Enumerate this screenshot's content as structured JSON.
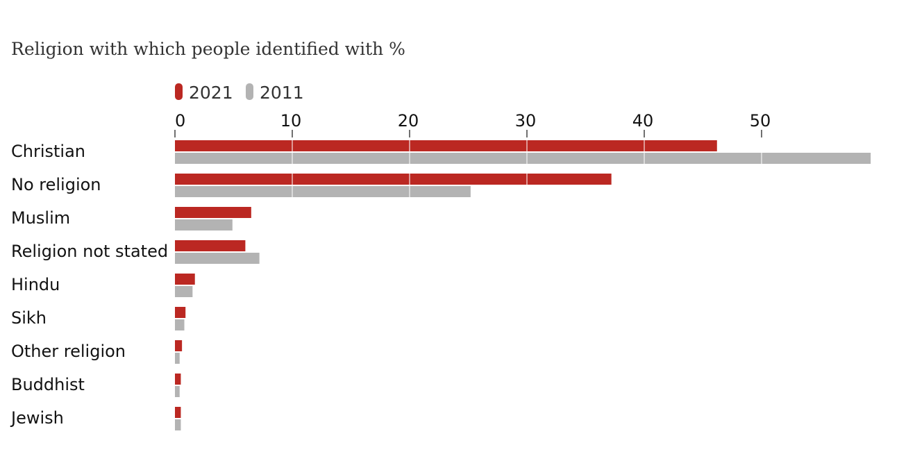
{
  "chart_data": {
    "type": "bar",
    "orientation": "horizontal",
    "subtitle": "Religion with which people identified with %",
    "categories": [
      "Christian",
      "No religion",
      "Muslim",
      "Religion not stated",
      "Hindu",
      "Sikh",
      "Other religion",
      "Buddhist",
      "Jewish"
    ],
    "series": [
      {
        "name": "2021",
        "color": "#bb2822",
        "values": [
          46.2,
          37.2,
          6.5,
          6.0,
          1.7,
          0.9,
          0.6,
          0.5,
          0.5
        ]
      },
      {
        "name": "2011",
        "color": "#b3b3b3",
        "values": [
          59.3,
          25.2,
          4.9,
          7.2,
          1.5,
          0.8,
          0.4,
          0.4,
          0.5
        ]
      }
    ],
    "xticks": [
      0,
      10,
      20,
      30,
      40,
      50
    ],
    "xlim": [
      0,
      60
    ],
    "legend": "top",
    "grid": true
  }
}
